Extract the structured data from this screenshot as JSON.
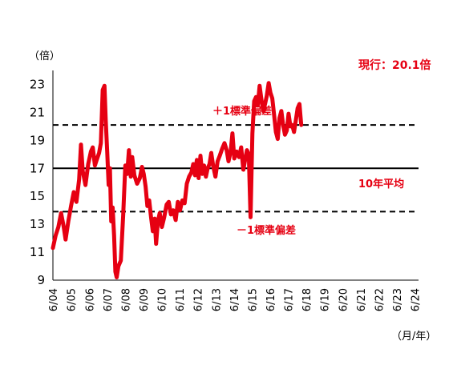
{
  "chart_data": {
    "type": "line",
    "y_unit_label": "（倍）",
    "x_unit_label": "（月/年）",
    "ylim": [
      9,
      24
    ],
    "y_ticks": [
      "9",
      "11",
      "13",
      "15",
      "17",
      "19",
      "21",
      "23"
    ],
    "x_ticks": [
      "6/04",
      "6/05",
      "6/06",
      "6/07",
      "6/08",
      "6/09",
      "6/10",
      "6/11",
      "6/12",
      "6/13",
      "6/14",
      "6/15",
      "6/16",
      "6/17",
      "6/18",
      "6/19",
      "6/20",
      "6/21",
      "6/22",
      "6/23",
      "6/24"
    ],
    "x_range": [
      2004.4,
      2024.6
    ],
    "grid": false,
    "series": [
      {
        "name": "",
        "color": "#e60012",
        "points": [
          [
            2004.4,
            11.3
          ],
          [
            2004.55,
            12.2
          ],
          [
            2004.7,
            12.8
          ],
          [
            2004.85,
            13.8
          ],
          [
            2005.0,
            12.8
          ],
          [
            2005.1,
            11.9
          ],
          [
            2005.25,
            13.2
          ],
          [
            2005.4,
            14.3
          ],
          [
            2005.55,
            15.3
          ],
          [
            2005.7,
            14.6
          ],
          [
            2005.85,
            16.2
          ],
          [
            2005.95,
            18.7
          ],
          [
            2006.05,
            16.8
          ],
          [
            2006.2,
            15.8
          ],
          [
            2006.35,
            17.3
          ],
          [
            2006.5,
            18.2
          ],
          [
            2006.6,
            18.5
          ],
          [
            2006.72,
            17.2
          ],
          [
            2006.82,
            17.6
          ],
          [
            2006.95,
            18.1
          ],
          [
            2007.05,
            18.8
          ],
          [
            2007.15,
            22.6
          ],
          [
            2007.25,
            22.9
          ],
          [
            2007.32,
            20.4
          ],
          [
            2007.4,
            18.2
          ],
          [
            2007.48,
            15.8
          ],
          [
            2007.55,
            17.0
          ],
          [
            2007.62,
            13.2
          ],
          [
            2007.7,
            14.2
          ],
          [
            2007.78,
            12.2
          ],
          [
            2007.85,
            9.6
          ],
          [
            2007.92,
            9.2
          ],
          [
            2008.02,
            10.0
          ],
          [
            2008.15,
            10.4
          ],
          [
            2008.28,
            13.6
          ],
          [
            2008.4,
            17.2
          ],
          [
            2008.5,
            16.6
          ],
          [
            2008.6,
            18.3
          ],
          [
            2008.7,
            16.4
          ],
          [
            2008.78,
            17.8
          ],
          [
            2008.9,
            16.5
          ],
          [
            2009.05,
            15.9
          ],
          [
            2009.2,
            16.3
          ],
          [
            2009.32,
            17.1
          ],
          [
            2009.42,
            16.6
          ],
          [
            2009.52,
            15.7
          ],
          [
            2009.62,
            14.3
          ],
          [
            2009.72,
            14.7
          ],
          [
            2009.82,
            13.5
          ],
          [
            2009.92,
            12.5
          ],
          [
            2010.02,
            13.4
          ],
          [
            2010.1,
            11.6
          ],
          [
            2010.2,
            13.2
          ],
          [
            2010.3,
            13.8
          ],
          [
            2010.42,
            12.8
          ],
          [
            2010.55,
            13.5
          ],
          [
            2010.68,
            14.4
          ],
          [
            2010.8,
            14.6
          ],
          [
            2010.92,
            13.7
          ],
          [
            2011.05,
            14.0
          ],
          [
            2011.18,
            13.3
          ],
          [
            2011.3,
            14.6
          ],
          [
            2011.42,
            14.0
          ],
          [
            2011.55,
            14.7
          ],
          [
            2011.68,
            14.5
          ],
          [
            2011.8,
            15.9
          ],
          [
            2011.92,
            16.4
          ],
          [
            2012.05,
            16.7
          ],
          [
            2012.15,
            17.3
          ],
          [
            2012.25,
            16.5
          ],
          [
            2012.35,
            17.6
          ],
          [
            2012.45,
            16.3
          ],
          [
            2012.55,
            17.9
          ],
          [
            2012.65,
            16.6
          ],
          [
            2012.75,
            17.2
          ],
          [
            2012.85,
            16.4
          ],
          [
            2012.95,
            17.0
          ],
          [
            2013.05,
            17.3
          ],
          [
            2013.15,
            18.1
          ],
          [
            2013.25,
            17.2
          ],
          [
            2013.38,
            16.4
          ],
          [
            2013.5,
            17.5
          ],
          [
            2013.62,
            17.9
          ],
          [
            2013.75,
            18.4
          ],
          [
            2013.88,
            18.8
          ],
          [
            2014.0,
            18.3
          ],
          [
            2014.1,
            17.5
          ],
          [
            2014.22,
            18.2
          ],
          [
            2014.32,
            19.5
          ],
          [
            2014.42,
            17.7
          ],
          [
            2014.55,
            18.2
          ],
          [
            2014.68,
            17.8
          ],
          [
            2014.8,
            18.5
          ],
          [
            2014.92,
            16.9
          ],
          [
            2015.02,
            17.6
          ],
          [
            2015.12,
            18.3
          ],
          [
            2015.22,
            18.0
          ],
          [
            2015.32,
            13.5
          ],
          [
            2015.42,
            19.5
          ],
          [
            2015.52,
            21.8
          ],
          [
            2015.62,
            22.1
          ],
          [
            2015.72,
            21.5
          ],
          [
            2015.82,
            22.9
          ],
          [
            2015.92,
            21.9
          ],
          [
            2016.02,
            21.1
          ],
          [
            2016.12,
            21.6
          ],
          [
            2016.22,
            22.2
          ],
          [
            2016.32,
            23.1
          ],
          [
            2016.42,
            22.4
          ],
          [
            2016.52,
            22.0
          ],
          [
            2016.62,
            20.8
          ],
          [
            2016.72,
            19.6
          ],
          [
            2016.82,
            19.1
          ],
          [
            2016.92,
            20.6
          ],
          [
            2017.02,
            21.1
          ],
          [
            2017.12,
            20.1
          ],
          [
            2017.22,
            19.4
          ],
          [
            2017.32,
            19.7
          ],
          [
            2017.42,
            20.9
          ],
          [
            2017.52,
            20.0
          ],
          [
            2017.62,
            20.1
          ],
          [
            2017.72,
            19.6
          ],
          [
            2017.82,
            20.4
          ],
          [
            2017.92,
            21.3
          ],
          [
            2018.02,
            21.6
          ],
          [
            2018.12,
            20.1
          ]
        ]
      }
    ],
    "reference_lines": [
      {
        "name": "average",
        "y": 17.0,
        "style": "solid",
        "label": "10年平均"
      },
      {
        "name": "plus_1sd",
        "y": 20.1,
        "style": "dashed",
        "label": "＋1標準偏差"
      },
      {
        "name": "minus_1sd",
        "y": 13.9,
        "style": "dashed",
        "label": "－1標準偏差"
      }
    ],
    "current": {
      "label": "現行：20.1倍",
      "value": 20.1
    }
  }
}
